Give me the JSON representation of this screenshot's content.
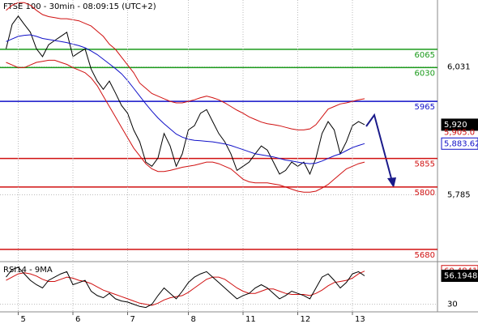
{
  "chart_data": [
    {
      "type": "line",
      "title": "FTSE 100 - 30min - 08:09:15 (UTC+2)",
      "xlim": [
        -1,
        71
      ],
      "ylim": [
        5658,
        6160
      ],
      "yticks": [
        {
          "value": 6031,
          "label": "6,031"
        },
        {
          "value": 5785,
          "label": "5,785"
        }
      ],
      "grid": true,
      "levels": [
        {
          "value": 6065,
          "color": "#1a9a1a"
        },
        {
          "value": 6030,
          "color": "#1a9a1a"
        },
        {
          "value": 5965,
          "color": "#1010c8"
        },
        {
          "value": 5855,
          "color": "#d01010"
        },
        {
          "value": 5800,
          "color": "#d01010"
        },
        {
          "value": 5680,
          "color": "#d01010"
        }
      ],
      "series": [
        {
          "color": "#000000",
          "values": [
            6066,
            6113,
            6129,
            6113,
            6098,
            6066,
            6051,
            6074,
            6082,
            6090,
            6098,
            6051,
            6059,
            6066,
            6027,
            6004,
            5988,
            6004,
            5981,
            5957,
            5942,
            5910,
            5887,
            5848,
            5840,
            5856,
            5903,
            5879,
            5840,
            5864,
            5910,
            5918,
            5942,
            5949,
            5926,
            5903,
            5887,
            5864,
            5832,
            5840,
            5848,
            5864,
            5879,
            5871,
            5848,
            5825,
            5832,
            5848,
            5840,
            5848,
            5825,
            5856,
            5903,
            5926,
            5910,
            5864,
            5887,
            5918,
            5926,
            5920
          ],
          "value_labels": [
            null,
            null,
            null,
            null,
            null,
            null,
            null,
            null,
            null,
            null,
            null,
            null,
            null,
            null,
            null,
            null,
            null,
            null,
            null,
            null,
            null,
            null,
            null,
            null,
            null,
            null,
            null,
            null,
            null,
            null,
            null,
            null,
            null,
            null,
            null,
            null,
            null,
            null,
            null,
            null,
            null,
            null,
            null,
            null,
            null,
            null,
            null,
            null,
            null,
            null,
            null,
            null,
            null,
            null,
            null,
            null,
            null,
            null,
            null,
            "5,920"
          ]
        },
        {
          "color": "#1010c8",
          "values": [
            6080,
            6085,
            6090,
            6092,
            6093,
            6090,
            6086,
            6084,
            6082,
            6080,
            6078,
            6075,
            6072,
            6068,
            6062,
            6055,
            6046,
            6037,
            6028,
            6018,
            6005,
            5990,
            5975,
            5960,
            5946,
            5933,
            5922,
            5912,
            5902,
            5896,
            5892,
            5890,
            5889,
            5888,
            5887,
            5885,
            5883,
            5880,
            5876,
            5872,
            5868,
            5864,
            5862,
            5860,
            5858,
            5855,
            5852,
            5850,
            5848,
            5846,
            5845,
            5846,
            5850,
            5855,
            5860,
            5864,
            5870,
            5876,
            5880,
            5883.62
          ],
          "value_labels": [
            null,
            null,
            null,
            null,
            null,
            null,
            null,
            null,
            null,
            null,
            null,
            null,
            null,
            null,
            null,
            null,
            null,
            null,
            null,
            null,
            null,
            null,
            null,
            null,
            null,
            null,
            null,
            null,
            null,
            null,
            null,
            null,
            null,
            null,
            null,
            null,
            null,
            null,
            null,
            null,
            null,
            null,
            null,
            null,
            null,
            null,
            null,
            null,
            null,
            null,
            null,
            null,
            null,
            null,
            null,
            null,
            null,
            null,
            null,
            "5,883.62"
          ]
        },
        {
          "color": "#d01010",
          "values": [
            6140,
            6150,
            6155,
            6155,
            6150,
            6140,
            6132,
            6128,
            6126,
            6124,
            6124,
            6122,
            6120,
            6115,
            6110,
            6100,
            6090,
            6075,
            6065,
            6050,
            6035,
            6020,
            6000,
            5990,
            5980,
            5975,
            5970,
            5965,
            5962,
            5962,
            5965,
            5968,
            5972,
            5975,
            5972,
            5968,
            5962,
            5955,
            5948,
            5942,
            5935,
            5930,
            5925,
            5922,
            5920,
            5918,
            5915,
            5912,
            5910,
            5910,
            5912,
            5920,
            5935,
            5950,
            5955,
            5960,
            5962,
            5965,
            5968,
            5970
          ]
        },
        {
          "color": "#d01010",
          "values": [
            6040,
            6035,
            6030,
            6030,
            6035,
            6040,
            6042,
            6044,
            6044,
            6040,
            6036,
            6030,
            6025,
            6020,
            6010,
            5995,
            5975,
            5955,
            5935,
            5915,
            5895,
            5875,
            5860,
            5845,
            5835,
            5830,
            5830,
            5832,
            5835,
            5838,
            5840,
            5842,
            5845,
            5848,
            5848,
            5845,
            5840,
            5835,
            5825,
            5815,
            5810,
            5808,
            5808,
            5808,
            5806,
            5804,
            5800,
            5796,
            5792,
            5790,
            5790,
            5792,
            5798,
            5805,
            5815,
            5825,
            5835,
            5840,
            5845,
            5848
          ]
        }
      ],
      "annotations": [
        {
          "text": "5,905.0",
          "value": 5905,
          "color": "#d01010"
        }
      ]
    },
    {
      "type": "line",
      "title": "RSI14 - 9MA",
      "xlim": [
        -1,
        71
      ],
      "ylim": [
        23,
        67
      ],
      "xticks": [
        {
          "value": 2,
          "label": "5"
        },
        {
          "value": 11,
          "label": "6"
        },
        {
          "value": 20,
          "label": "7"
        },
        {
          "value": 30,
          "label": "8"
        },
        {
          "value": 39,
          "label": "11"
        },
        {
          "value": 48,
          "label": "12"
        },
        {
          "value": 57,
          "label": "13"
        }
      ],
      "yticks": [
        30
      ],
      "grid": true,
      "series": [
        {
          "color": "#d01010",
          "show_last": true,
          "values": [
            52,
            55,
            58,
            59,
            58,
            56,
            53,
            51,
            51,
            53,
            55,
            54,
            52,
            51,
            49,
            46,
            43,
            41,
            39,
            37,
            35,
            33,
            31,
            30,
            29,
            31,
            34,
            36,
            37,
            38,
            41,
            45,
            49,
            53,
            55,
            55,
            53,
            49,
            45,
            42,
            40,
            40,
            42,
            44,
            44,
            42,
            40,
            39,
            39,
            39,
            38,
            40,
            43,
            47,
            50,
            51,
            52,
            54,
            58,
            60.4841
          ]
        },
        {
          "color": "#000000",
          "show_last": true,
          "values": [
            55,
            62,
            64,
            58,
            52,
            48,
            45,
            52,
            55,
            58,
            60,
            48,
            50,
            52,
            42,
            38,
            36,
            40,
            35,
            33,
            32,
            30,
            28,
            27,
            30,
            38,
            45,
            40,
            35,
            42,
            50,
            55,
            58,
            60,
            55,
            50,
            45,
            40,
            35,
            38,
            40,
            45,
            48,
            45,
            40,
            35,
            38,
            42,
            40,
            38,
            35,
            45,
            55,
            58,
            52,
            45,
            50,
            58,
            60,
            56.1948
          ]
        }
      ]
    }
  ]
}
